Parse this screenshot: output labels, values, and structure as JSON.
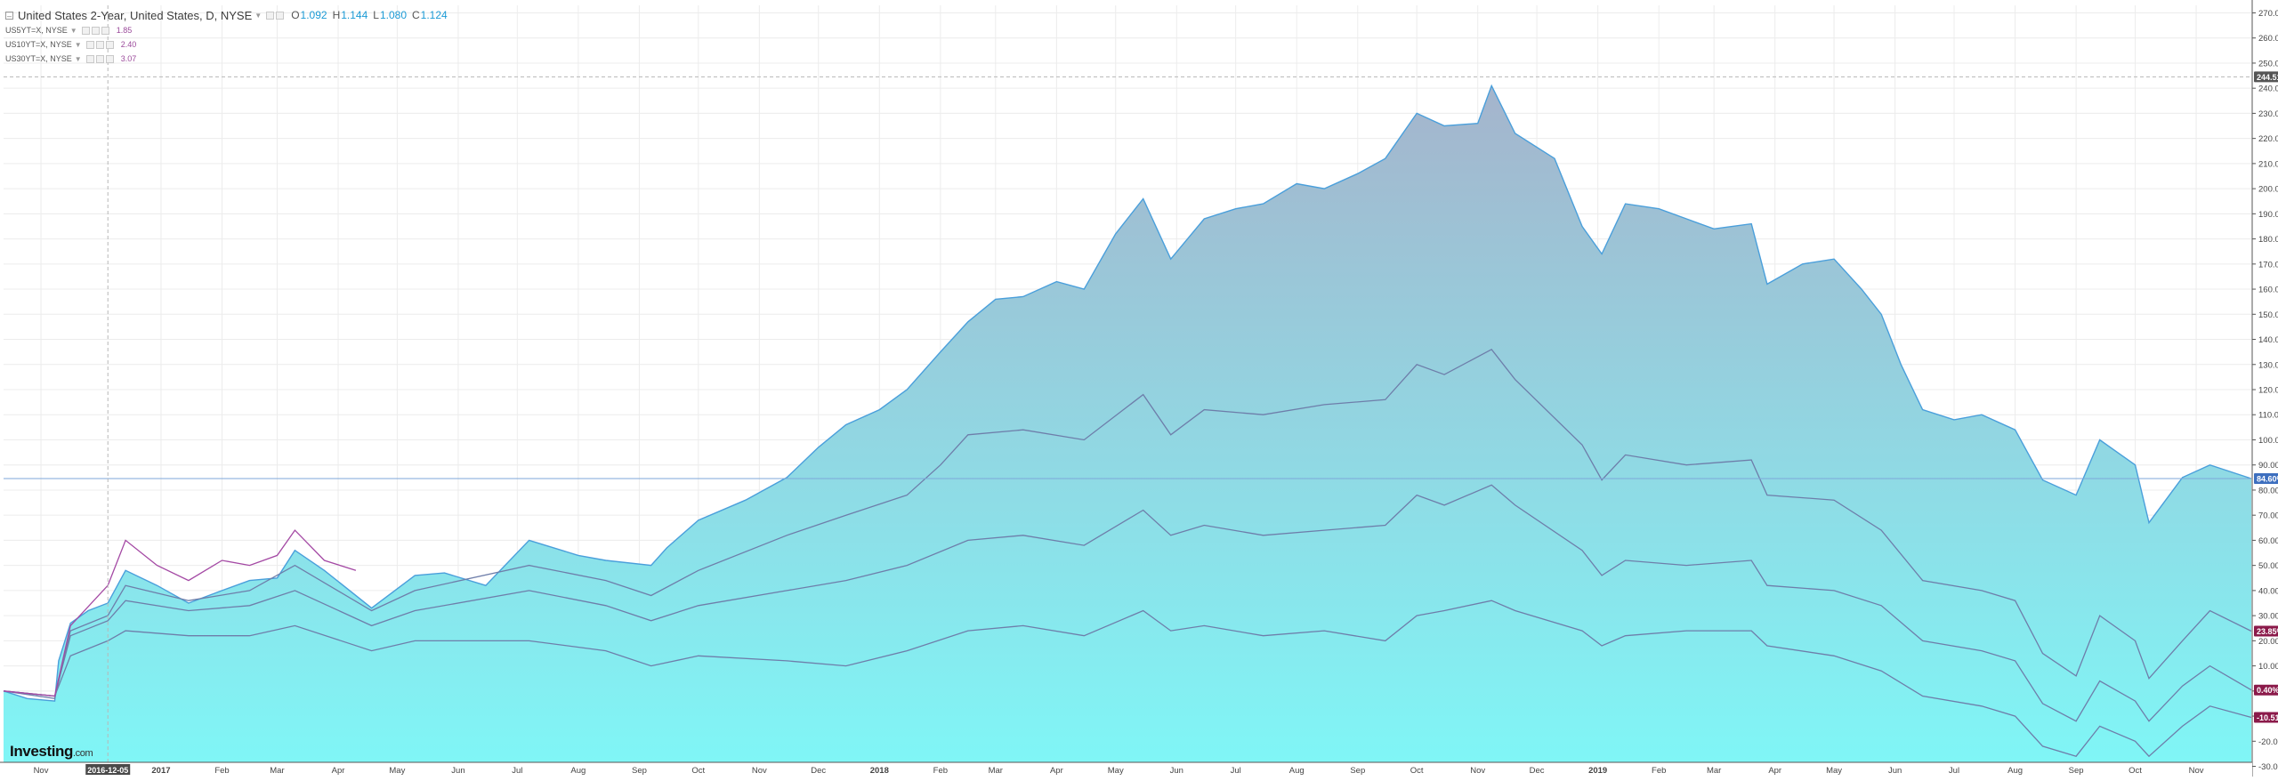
{
  "legend": {
    "main": {
      "symbol": "United States 2-Year, United States, D, NYSE",
      "open_label": "O",
      "open": "1.092",
      "high_label": "H",
      "high": "1.144",
      "low_label": "L",
      "low": "1.080",
      "close_label": "C",
      "close": "1.124"
    },
    "comparisons": [
      {
        "symbol": "US5YT=X, NYSE",
        "value": "1.85",
        "color": "#9b4a9b"
      },
      {
        "symbol": "US10YT=X, NYSE",
        "value": "2.40",
        "color": "#9b4a9b"
      },
      {
        "symbol": "US30YT=X, NYSE",
        "value": "3.07",
        "color": "#9b4a9b"
      }
    ]
  },
  "logo": {
    "brand": "Investing",
    "suffix": ".com"
  },
  "colors": {
    "area_top": "#a5b4cc",
    "area_bottom": "#7ff7f7",
    "area_line": "#4a9fdb",
    "compare_line": "#6e7eaa",
    "early_line": "#a449a4",
    "badge_blue": "#3d6fbf",
    "badge_maroon": "#8b1a4a",
    "badge_dark": "#555555"
  },
  "chart_data": {
    "type": "area",
    "x_ticks": [
      "Nov",
      "2016-12-05",
      "2017",
      "Feb",
      "Mar",
      "Apr",
      "May",
      "Jun",
      "Jul",
      "Aug",
      "Sep",
      "Oct",
      "Nov",
      "Dec",
      "2018",
      "Feb",
      "Mar",
      "Apr",
      "May",
      "Jun",
      "Jul",
      "Aug",
      "Sep",
      "Oct",
      "Nov",
      "Dec",
      "2019",
      "Feb",
      "Mar",
      "Apr",
      "May",
      "Jun",
      "Jul",
      "Aug",
      "Sep",
      "Oct",
      "Nov"
    ],
    "y_ticks": [
      "270.00%",
      "260.00%",
      "250.00%",
      "240.00%",
      "230.00%",
      "220.00%",
      "210.00%",
      "200.00%",
      "190.00%",
      "180.00%",
      "170.00%",
      "160.00%",
      "150.00%",
      "140.00%",
      "130.00%",
      "120.00%",
      "110.00%",
      "100.00%",
      "90.00%",
      "80.00%",
      "70.00%",
      "60.00%",
      "50.00%",
      "40.00%",
      "30.00%",
      "20.00%",
      "10.00%",
      "0.00%",
      "-10.00%",
      "-20.00%",
      "-30.00%"
    ],
    "ylim": [
      -33,
      273
    ],
    "x_start": "2016-10-13",
    "x_end": "2019-11-29",
    "crosshair_x": "2016-12-05",
    "crosshair_value": "244.518",
    "series": [
      {
        "symbol": "United States 2-Year",
        "style": "area",
        "last_label": "84.60%",
        "points": [
          [
            "2016-10-13",
            0
          ],
          [
            "2016-10-25",
            -3
          ],
          [
            "2016-11-08",
            -4
          ],
          [
            "2016-11-10",
            12
          ],
          [
            "2016-11-16",
            27
          ],
          [
            "2016-11-25",
            32
          ],
          [
            "2016-12-05",
            35
          ],
          [
            "2016-12-14",
            48
          ],
          [
            "2016-12-30",
            42
          ],
          [
            "2017-01-15",
            35
          ],
          [
            "2017-02-01",
            40
          ],
          [
            "2017-02-15",
            44
          ],
          [
            "2017-03-01",
            45
          ],
          [
            "2017-03-10",
            56
          ],
          [
            "2017-03-25",
            48
          ],
          [
            "2017-04-18",
            33
          ],
          [
            "2017-05-10",
            46
          ],
          [
            "2017-05-25",
            47
          ],
          [
            "2017-06-15",
            42
          ],
          [
            "2017-07-07",
            60
          ],
          [
            "2017-08-01",
            54
          ],
          [
            "2017-08-15",
            52
          ],
          [
            "2017-09-07",
            50
          ],
          [
            "2017-09-15",
            57
          ],
          [
            "2017-10-01",
            68
          ],
          [
            "2017-10-25",
            76
          ],
          [
            "2017-11-15",
            85
          ],
          [
            "2017-12-01",
            97
          ],
          [
            "2017-12-15",
            106
          ],
          [
            "2018-01-01",
            112
          ],
          [
            "2018-01-15",
            120
          ],
          [
            "2018-02-01",
            135
          ],
          [
            "2018-02-15",
            147
          ],
          [
            "2018-03-01",
            156
          ],
          [
            "2018-03-15",
            157
          ],
          [
            "2018-04-01",
            163
          ],
          [
            "2018-04-15",
            160
          ],
          [
            "2018-05-01",
            182
          ],
          [
            "2018-05-15",
            196
          ],
          [
            "2018-05-29",
            172
          ],
          [
            "2018-06-15",
            188
          ],
          [
            "2018-07-01",
            192
          ],
          [
            "2018-07-15",
            194
          ],
          [
            "2018-08-01",
            202
          ],
          [
            "2018-08-15",
            200
          ],
          [
            "2018-09-01",
            206
          ],
          [
            "2018-09-15",
            212
          ],
          [
            "2018-10-01",
            230
          ],
          [
            "2018-10-15",
            225
          ],
          [
            "2018-11-01",
            226
          ],
          [
            "2018-11-08",
            241
          ],
          [
            "2018-11-20",
            222
          ],
          [
            "2018-12-10",
            212
          ],
          [
            "2018-12-24",
            185
          ],
          [
            "2019-01-03",
            174
          ],
          [
            "2019-01-15",
            194
          ],
          [
            "2019-02-01",
            192
          ],
          [
            "2019-02-15",
            188
          ],
          [
            "2019-03-01",
            184
          ],
          [
            "2019-03-20",
            186
          ],
          [
            "2019-03-28",
            162
          ],
          [
            "2019-04-15",
            170
          ],
          [
            "2019-05-01",
            172
          ],
          [
            "2019-05-15",
            160
          ],
          [
            "2019-05-25",
            150
          ],
          [
            "2019-06-04",
            130
          ],
          [
            "2019-06-15",
            112
          ],
          [
            "2019-07-01",
            108
          ],
          [
            "2019-07-15",
            110
          ],
          [
            "2019-08-01",
            104
          ],
          [
            "2019-08-15",
            84
          ],
          [
            "2019-09-01",
            78
          ],
          [
            "2019-09-13",
            100
          ],
          [
            "2019-10-01",
            90
          ],
          [
            "2019-10-08",
            67
          ],
          [
            "2019-10-25",
            85
          ],
          [
            "2019-11-08",
            90
          ],
          [
            "2019-11-29",
            84.6
          ]
        ]
      },
      {
        "symbol": "US5YT=X",
        "style": "line",
        "last_label": "23.85%",
        "points": [
          [
            "2016-10-13",
            0
          ],
          [
            "2016-11-08",
            -3
          ],
          [
            "2016-11-16",
            24
          ],
          [
            "2016-12-05",
            30
          ],
          [
            "2016-12-14",
            42
          ],
          [
            "2017-01-15",
            36
          ],
          [
            "2017-02-15",
            40
          ],
          [
            "2017-03-10",
            50
          ],
          [
            "2017-04-18",
            32
          ],
          [
            "2017-05-10",
            40
          ],
          [
            "2017-07-07",
            50
          ],
          [
            "2017-08-15",
            44
          ],
          [
            "2017-09-07",
            38
          ],
          [
            "2017-10-01",
            48
          ],
          [
            "2017-11-15",
            62
          ],
          [
            "2017-12-15",
            70
          ],
          [
            "2018-01-15",
            78
          ],
          [
            "2018-02-01",
            90
          ],
          [
            "2018-02-15",
            102
          ],
          [
            "2018-03-15",
            104
          ],
          [
            "2018-04-15",
            100
          ],
          [
            "2018-05-15",
            118
          ],
          [
            "2018-05-29",
            102
          ],
          [
            "2018-06-15",
            112
          ],
          [
            "2018-07-15",
            110
          ],
          [
            "2018-08-15",
            114
          ],
          [
            "2018-09-15",
            116
          ],
          [
            "2018-10-01",
            130
          ],
          [
            "2018-10-15",
            126
          ],
          [
            "2018-11-08",
            136
          ],
          [
            "2018-11-20",
            124
          ],
          [
            "2018-12-24",
            98
          ],
          [
            "2019-01-03",
            84
          ],
          [
            "2019-01-15",
            94
          ],
          [
            "2019-02-15",
            90
          ],
          [
            "2019-03-20",
            92
          ],
          [
            "2019-03-28",
            78
          ],
          [
            "2019-05-01",
            76
          ],
          [
            "2019-05-25",
            64
          ],
          [
            "2019-06-15",
            44
          ],
          [
            "2019-07-15",
            40
          ],
          [
            "2019-08-01",
            36
          ],
          [
            "2019-08-15",
            15
          ],
          [
            "2019-09-01",
            6
          ],
          [
            "2019-09-13",
            30
          ],
          [
            "2019-10-01",
            20
          ],
          [
            "2019-10-08",
            5
          ],
          [
            "2019-10-25",
            20
          ],
          [
            "2019-11-08",
            32
          ],
          [
            "2019-11-29",
            23.85
          ]
        ]
      },
      {
        "symbol": "US10YT=X",
        "style": "line",
        "last_label": "0.40%",
        "points": [
          [
            "2016-10-13",
            0
          ],
          [
            "2016-11-08",
            -2
          ],
          [
            "2016-11-16",
            22
          ],
          [
            "2016-12-05",
            28
          ],
          [
            "2016-12-14",
            36
          ],
          [
            "2017-01-15",
            32
          ],
          [
            "2017-02-15",
            34
          ],
          [
            "2017-03-10",
            40
          ],
          [
            "2017-04-18",
            26
          ],
          [
            "2017-05-10",
            32
          ],
          [
            "2017-07-07",
            40
          ],
          [
            "2017-08-15",
            34
          ],
          [
            "2017-09-07",
            28
          ],
          [
            "2017-10-01",
            34
          ],
          [
            "2017-11-15",
            40
          ],
          [
            "2017-12-15",
            44
          ],
          [
            "2018-01-15",
            50
          ],
          [
            "2018-02-15",
            60
          ],
          [
            "2018-03-15",
            62
          ],
          [
            "2018-04-15",
            58
          ],
          [
            "2018-05-15",
            72
          ],
          [
            "2018-05-29",
            62
          ],
          [
            "2018-06-15",
            66
          ],
          [
            "2018-07-15",
            62
          ],
          [
            "2018-08-15",
            64
          ],
          [
            "2018-09-15",
            66
          ],
          [
            "2018-10-01",
            78
          ],
          [
            "2018-10-15",
            74
          ],
          [
            "2018-11-08",
            82
          ],
          [
            "2018-11-20",
            74
          ],
          [
            "2018-12-24",
            56
          ],
          [
            "2019-01-03",
            46
          ],
          [
            "2019-01-15",
            52
          ],
          [
            "2019-02-15",
            50
          ],
          [
            "2019-03-20",
            52
          ],
          [
            "2019-03-28",
            42
          ],
          [
            "2019-05-01",
            40
          ],
          [
            "2019-05-25",
            34
          ],
          [
            "2019-06-15",
            20
          ],
          [
            "2019-07-15",
            16
          ],
          [
            "2019-08-01",
            12
          ],
          [
            "2019-08-15",
            -5
          ],
          [
            "2019-09-01",
            -12
          ],
          [
            "2019-09-13",
            4
          ],
          [
            "2019-10-01",
            -4
          ],
          [
            "2019-10-08",
            -12
          ],
          [
            "2019-10-25",
            2
          ],
          [
            "2019-11-08",
            10
          ],
          [
            "2019-11-29",
            0.4
          ]
        ]
      },
      {
        "symbol": "US30YT=X",
        "style": "line",
        "last_label": "-10.51%",
        "points": [
          [
            "2016-10-13",
            0
          ],
          [
            "2016-11-08",
            -2
          ],
          [
            "2016-11-16",
            14
          ],
          [
            "2016-12-05",
            20
          ],
          [
            "2016-12-14",
            24
          ],
          [
            "2017-01-15",
            22
          ],
          [
            "2017-02-15",
            22
          ],
          [
            "2017-03-10",
            26
          ],
          [
            "2017-04-18",
            16
          ],
          [
            "2017-05-10",
            20
          ],
          [
            "2017-07-07",
            20
          ],
          [
            "2017-08-15",
            16
          ],
          [
            "2017-09-07",
            10
          ],
          [
            "2017-10-01",
            14
          ],
          [
            "2017-11-15",
            12
          ],
          [
            "2017-12-15",
            10
          ],
          [
            "2018-01-15",
            16
          ],
          [
            "2018-02-15",
            24
          ],
          [
            "2018-03-15",
            26
          ],
          [
            "2018-04-15",
            22
          ],
          [
            "2018-05-15",
            32
          ],
          [
            "2018-05-29",
            24
          ],
          [
            "2018-06-15",
            26
          ],
          [
            "2018-07-15",
            22
          ],
          [
            "2018-08-15",
            24
          ],
          [
            "2018-09-15",
            20
          ],
          [
            "2018-10-01",
            30
          ],
          [
            "2018-10-15",
            32
          ],
          [
            "2018-11-08",
            36
          ],
          [
            "2018-11-20",
            32
          ],
          [
            "2018-12-24",
            24
          ],
          [
            "2019-01-03",
            18
          ],
          [
            "2019-01-15",
            22
          ],
          [
            "2019-02-15",
            24
          ],
          [
            "2019-03-20",
            24
          ],
          [
            "2019-03-28",
            18
          ],
          [
            "2019-05-01",
            14
          ],
          [
            "2019-05-25",
            8
          ],
          [
            "2019-06-15",
            -2
          ],
          [
            "2019-07-15",
            -6
          ],
          [
            "2019-08-01",
            -10
          ],
          [
            "2019-08-15",
            -22
          ],
          [
            "2019-09-01",
            -26
          ],
          [
            "2019-09-13",
            -14
          ],
          [
            "2019-10-01",
            -20
          ],
          [
            "2019-10-08",
            -26
          ],
          [
            "2019-10-25",
            -14
          ],
          [
            "2019-11-08",
            -6
          ],
          [
            "2019-11-29",
            -10.51
          ]
        ]
      },
      {
        "symbol": "early-comparison",
        "style": "early-line",
        "points": [
          [
            "2016-10-13",
            0
          ],
          [
            "2016-11-08",
            -2
          ],
          [
            "2016-11-16",
            26
          ],
          [
            "2016-12-05",
            42
          ],
          [
            "2016-12-14",
            60
          ],
          [
            "2016-12-30",
            50
          ],
          [
            "2017-01-15",
            44
          ],
          [
            "2017-02-01",
            52
          ],
          [
            "2017-02-15",
            50
          ],
          [
            "2017-03-01",
            54
          ],
          [
            "2017-03-10",
            64
          ],
          [
            "2017-03-25",
            52
          ],
          [
            "2017-04-10",
            48
          ]
        ]
      }
    ]
  }
}
